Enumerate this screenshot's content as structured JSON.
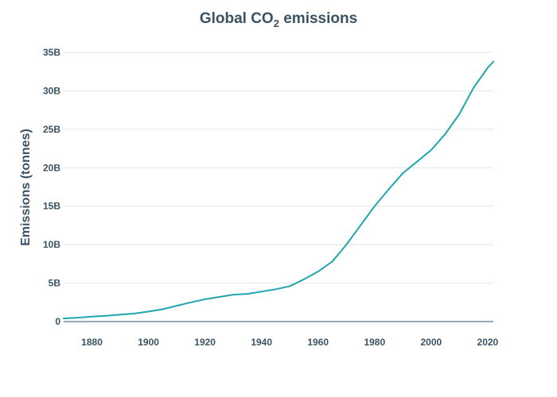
{
  "chart_data": {
    "type": "line",
    "title": "Global CO",
    "title_subscript": "2",
    "title_suffix": " emissions",
    "xlabel": "",
    "ylabel": "Emissions (tonnes)",
    "xlim": [
      1870,
      2022
    ],
    "ylim": [
      0,
      35000000000
    ],
    "x_ticks": [
      1880,
      1900,
      1920,
      1940,
      1960,
      1980,
      2000,
      2020
    ],
    "x_tick_labels": [
      "1880",
      "1900",
      "1920",
      "1940",
      "1960",
      "1980",
      "2000",
      "2020"
    ],
    "y_ticks": [
      0,
      5000000000,
      10000000000,
      15000000000,
      20000000000,
      25000000000,
      30000000000,
      35000000000
    ],
    "y_tick_labels": [
      "0",
      "5B",
      "10B",
      "15B",
      "20B",
      "25B",
      "30B",
      "35B"
    ],
    "grid": true,
    "series": [
      {
        "name": "Global CO2 emissions",
        "color": "#1fa6ae",
        "x": [
          1870,
          1875,
          1880,
          1885,
          1890,
          1895,
          1900,
          1905,
          1910,
          1915,
          1920,
          1925,
          1930,
          1935,
          1940,
          1945,
          1950,
          1955,
          1960,
          1965,
          1970,
          1975,
          1980,
          1985,
          1990,
          1995,
          2000,
          2005,
          2010,
          2015,
          2020,
          2022
        ],
        "y": [
          400000000,
          500000000,
          650000000,
          750000000,
          900000000,
          1050000000,
          1300000000,
          1600000000,
          2050000000,
          2500000000,
          2900000000,
          3200000000,
          3500000000,
          3600000000,
          3900000000,
          4200000000,
          4600000000,
          5500000000,
          6500000000,
          7800000000,
          10000000000,
          12500000000,
          15000000000,
          17200000000,
          19300000000,
          20800000000,
          22300000000,
          24400000000,
          27000000000,
          30400000000,
          33000000000,
          33800000000
        ]
      }
    ],
    "colors": {
      "text": "#3a5364",
      "grid": "#e4e4e4",
      "axis": "#3a5364",
      "line": "#1fa6ae"
    }
  }
}
